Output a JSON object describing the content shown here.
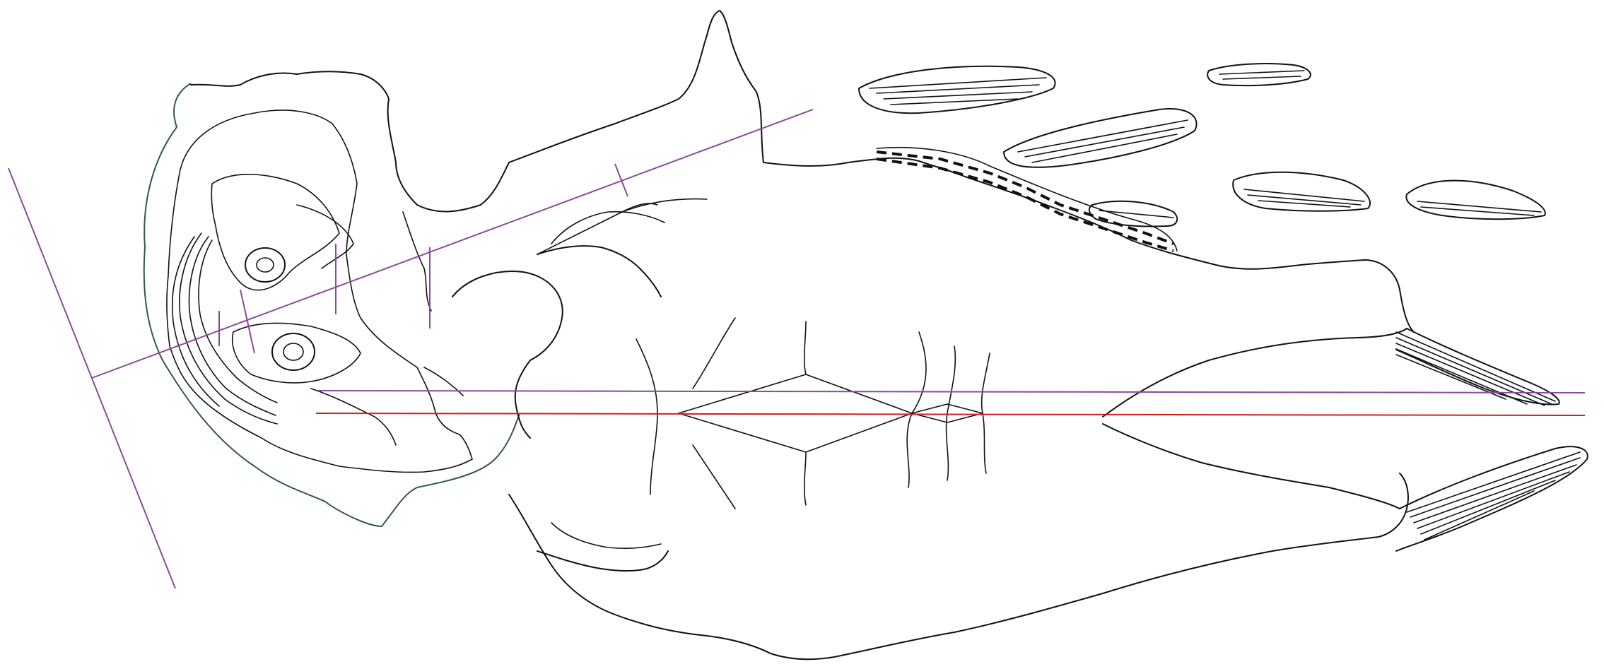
{
  "colors": {
    "background": "#ffffff",
    "outline": "#111111",
    "head_outline": "#2f5a45",
    "reference_lines": "#8a4a9a",
    "midline": "#d02020"
  },
  "elements": {
    "head": "head-outline",
    "body": "body-outline",
    "fins": "detached-fin-fragments",
    "lines": "measurement-reference-lines"
  }
}
